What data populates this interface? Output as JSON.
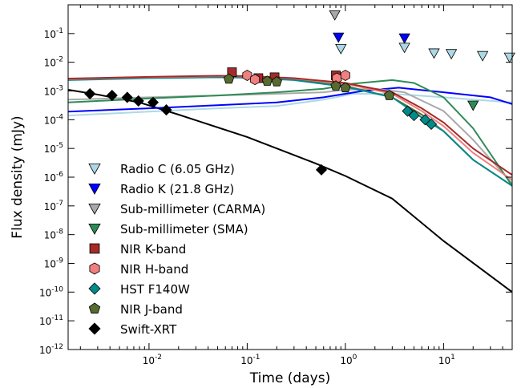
{
  "chart_data": {
    "type": "scatter",
    "title": "",
    "xlabel": "Time (days)",
    "ylabel": "Flux density (mJy)",
    "xscale": "log",
    "yscale": "log",
    "xlim": [
      0.0015,
      50
    ],
    "ylim": [
      1e-12,
      1
    ],
    "grid": false,
    "legend_position": "lower-left",
    "x_ticks": [
      {
        "value": 0.01,
        "base": "10",
        "exp": "-2"
      },
      {
        "value": 0.1,
        "base": "10",
        "exp": "-1"
      },
      {
        "value": 1,
        "base": "10",
        "exp": "0"
      },
      {
        "value": 10,
        "base": "10",
        "exp": "1"
      }
    ],
    "y_ticks": [
      {
        "value": 1e-12,
        "base": "10",
        "exp": "-12"
      },
      {
        "value": 1e-11,
        "base": "10",
        "exp": "-11"
      },
      {
        "value": 1e-10,
        "base": "10",
        "exp": "-10"
      },
      {
        "value": 1e-09,
        "base": "10",
        "exp": "-9"
      },
      {
        "value": 1e-08,
        "base": "10",
        "exp": "-8"
      },
      {
        "value": 1e-07,
        "base": "10",
        "exp": "-7"
      },
      {
        "value": 1e-06,
        "base": "10",
        "exp": "-6"
      },
      {
        "value": 1e-05,
        "base": "10",
        "exp": "-5"
      },
      {
        "value": 0.0001,
        "base": "10",
        "exp": "-4"
      },
      {
        "value": 0.001,
        "base": "10",
        "exp": "-3"
      },
      {
        "value": 0.01,
        "base": "10",
        "exp": "-2"
      },
      {
        "value": 0.1,
        "base": "10",
        "exp": "-1"
      }
    ],
    "series": [
      {
        "name": "Radio C (6.05 GHz)",
        "marker": "triangle-down",
        "color": "#add8e6",
        "points": [
          [
            0.9,
            0.03
          ],
          [
            4.0,
            0.033
          ],
          [
            8.0,
            0.021
          ],
          [
            12.0,
            0.02
          ],
          [
            25.0,
            0.017
          ],
          [
            47.0,
            0.015
          ]
        ]
      },
      {
        "name": "Radio K (21.8 GHz)",
        "marker": "triangle-down",
        "color": "#0000ff",
        "points": [
          [
            0.85,
            0.075
          ],
          [
            4.0,
            0.07
          ]
        ]
      },
      {
        "name": "Sub-millimeter (CARMA)",
        "marker": "triangle-down",
        "color": "#a9a9a9",
        "points": [
          [
            0.78,
            0.45
          ]
        ]
      },
      {
        "name": "Sub-millimeter (SMA)",
        "marker": "triangle-down",
        "color": "#2e8b57",
        "points": [
          [
            20.0,
            0.00032
          ]
        ]
      },
      {
        "name": "NIR K-band",
        "marker": "square",
        "color": "#a52a2a",
        "points": [
          [
            0.07,
            0.0045
          ],
          [
            0.13,
            0.0028
          ],
          [
            0.19,
            0.003
          ],
          [
            0.8,
            0.0035
          ]
        ]
      },
      {
        "name": "NIR H-band",
        "marker": "hexagon",
        "color": "#f08080",
        "points": [
          [
            0.1,
            0.0035
          ],
          [
            0.12,
            0.0025
          ],
          [
            0.82,
            0.0028
          ],
          [
            1.0,
            0.0035
          ]
        ]
      },
      {
        "name": "HST F140W",
        "marker": "diamond",
        "color": "#008b8b",
        "points": [
          [
            4.3,
            0.0002
          ],
          [
            5.0,
            0.00014
          ],
          [
            6.5,
            0.0001
          ],
          [
            7.5,
            7e-05
          ]
        ]
      },
      {
        "name": "NIR J-band",
        "marker": "pentagon",
        "color": "#556b2f",
        "points": [
          [
            0.065,
            0.0026
          ],
          [
            0.16,
            0.0022
          ],
          [
            0.2,
            0.0021
          ],
          [
            0.8,
            0.0015
          ],
          [
            1.0,
            0.0013
          ],
          [
            2.8,
            0.0007
          ]
        ]
      },
      {
        "name": "Swift-XRT",
        "marker": "diamond",
        "color": "#000000",
        "points": [
          [
            0.0025,
            0.0008
          ],
          [
            0.0042,
            0.0007
          ],
          [
            0.006,
            0.0006
          ],
          [
            0.0078,
            0.00045
          ],
          [
            0.011,
            0.0004
          ],
          [
            0.015,
            0.00022
          ],
          [
            0.57,
            1.8e-06
          ]
        ]
      }
    ],
    "model_curves": [
      {
        "color": "#000000",
        "points": [
          [
            0.0015,
            0.0011
          ],
          [
            0.003,
            0.00075
          ],
          [
            0.008,
            0.0004
          ],
          [
            0.02,
            0.00015
          ],
          [
            0.1,
            2.5e-05
          ],
          [
            0.5,
            3e-06
          ],
          [
            1.0,
            1.1e-06
          ],
          [
            3.0,
            1.8e-07
          ],
          [
            10.0,
            6e-09
          ],
          [
            50.0,
            1e-10
          ]
        ]
      },
      {
        "color": "#add8e6",
        "points": [
          [
            0.0015,
            0.00014
          ],
          [
            0.01,
            0.00019
          ],
          [
            0.05,
            0.00025
          ],
          [
            0.2,
            0.0003
          ],
          [
            0.6,
            0.0005
          ],
          [
            1.2,
            0.0008
          ],
          [
            3.0,
            0.0008
          ],
          [
            10.0,
            0.0006
          ],
          [
            50.0,
            0.0004
          ]
        ]
      },
      {
        "color": "#0000ff",
        "points": [
          [
            0.0015,
            0.00019
          ],
          [
            0.01,
            0.00025
          ],
          [
            0.05,
            0.00032
          ],
          [
            0.2,
            0.0004
          ],
          [
            0.6,
            0.0006
          ],
          [
            1.5,
            0.001
          ],
          [
            3.5,
            0.0013
          ],
          [
            10.0,
            0.0009
          ],
          [
            30.0,
            0.0006
          ],
          [
            50.0,
            0.00035
          ]
        ]
      },
      {
        "color": "#a9a9a9",
        "points": [
          [
            0.0015,
            0.0005
          ],
          [
            0.01,
            0.0006
          ],
          [
            0.05,
            0.0007
          ],
          [
            0.2,
            0.0008
          ],
          [
            0.6,
            0.0009
          ],
          [
            1.0,
            0.0011
          ],
          [
            2.0,
            0.0012
          ],
          [
            4.0,
            0.0009
          ],
          [
            10.0,
            0.0002
          ],
          [
            20.0,
            2e-05
          ],
          [
            50.0,
            6e-07
          ]
        ]
      },
      {
        "color": "#2e8b57",
        "points": [
          [
            0.0015,
            0.0004
          ],
          [
            0.01,
            0.00055
          ],
          [
            0.05,
            0.0007
          ],
          [
            0.2,
            0.0009
          ],
          [
            0.6,
            0.0012
          ],
          [
            1.2,
            0.0018
          ],
          [
            3.0,
            0.0024
          ],
          [
            5.0,
            0.0019
          ],
          [
            10.0,
            0.0006
          ],
          [
            20.0,
            5e-05
          ],
          [
            50.0,
            5e-07
          ]
        ]
      },
      {
        "color": "#556b2f",
        "points": [
          [
            0.0015,
            0.0025
          ],
          [
            0.01,
            0.0029
          ],
          [
            0.05,
            0.0031
          ],
          [
            0.1,
            0.003
          ],
          [
            0.3,
            0.0025
          ],
          [
            1.0,
            0.0015
          ],
          [
            3.0,
            0.0006
          ],
          [
            6.0,
            0.00015
          ],
          [
            10.0,
            4e-05
          ],
          [
            20.0,
            4e-06
          ],
          [
            50.0,
            5e-07
          ]
        ]
      },
      {
        "color": "#008b8b",
        "points": [
          [
            0.0015,
            0.0024
          ],
          [
            0.01,
            0.0028
          ],
          [
            0.05,
            0.003
          ],
          [
            0.1,
            0.0029
          ],
          [
            0.3,
            0.0024
          ],
          [
            1.0,
            0.0014
          ],
          [
            3.0,
            0.0006
          ],
          [
            6.0,
            0.00012
          ],
          [
            10.0,
            4e-05
          ],
          [
            20.0,
            4e-06
          ],
          [
            50.0,
            5e-07
          ]
        ]
      },
      {
        "color": "#f08080",
        "points": [
          [
            0.0015,
            0.0026
          ],
          [
            0.01,
            0.003
          ],
          [
            0.05,
            0.0033
          ],
          [
            0.1,
            0.0032
          ],
          [
            0.3,
            0.0027
          ],
          [
            1.0,
            0.0018
          ],
          [
            3.0,
            0.0008
          ],
          [
            6.0,
            0.0002
          ],
          [
            10.0,
            6e-05
          ],
          [
            20.0,
            7e-06
          ],
          [
            50.0,
            8e-07
          ]
        ]
      },
      {
        "color": "#a52a2a",
        "points": [
          [
            0.0015,
            0.0027
          ],
          [
            0.01,
            0.0031
          ],
          [
            0.05,
            0.0034
          ],
          [
            0.1,
            0.0033
          ],
          [
            0.3,
            0.0028
          ],
          [
            1.0,
            0.0019
          ],
          [
            3.0,
            0.0009
          ],
          [
            6.0,
            0.00025
          ],
          [
            10.0,
            8e-05
          ],
          [
            20.0,
            1e-05
          ],
          [
            50.0,
            1.2e-06
          ]
        ]
      }
    ]
  }
}
